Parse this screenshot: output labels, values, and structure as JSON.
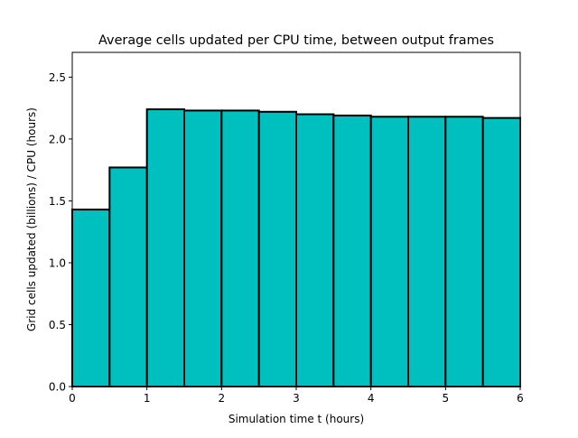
{
  "chart_data": {
    "type": "bar",
    "title": "Average cells updated per CPU time, between output frames",
    "xlabel": "Simulation time t (hours)",
    "ylabel": "Grid cells updated (billions) / CPU (hours)",
    "xlim": [
      0,
      6
    ],
    "ylim": [
      0,
      2.7
    ],
    "grid": false,
    "bar_color": "#00bfbf",
    "edge_color": "#000000",
    "bin_width": 0.5,
    "x": [
      0,
      0.5,
      1.0,
      1.5,
      2.0,
      2.5,
      3.0,
      3.5,
      4.0,
      4.5,
      5.0,
      5.5
    ],
    "values": [
      1.43,
      1.77,
      2.24,
      2.23,
      2.23,
      2.22,
      2.2,
      2.19,
      2.18,
      2.18,
      2.18,
      2.17
    ],
    "xticks": [
      0,
      1,
      2,
      3,
      4,
      5,
      6
    ],
    "xtick_labels": [
      "0",
      "1",
      "2",
      "3",
      "4",
      "5",
      "6"
    ],
    "yticks": [
      0.0,
      0.5,
      1.0,
      1.5,
      2.0,
      2.5
    ],
    "ytick_labels": [
      "0.0",
      "0.5",
      "1.0",
      "1.5",
      "2.0",
      "2.5"
    ]
  }
}
